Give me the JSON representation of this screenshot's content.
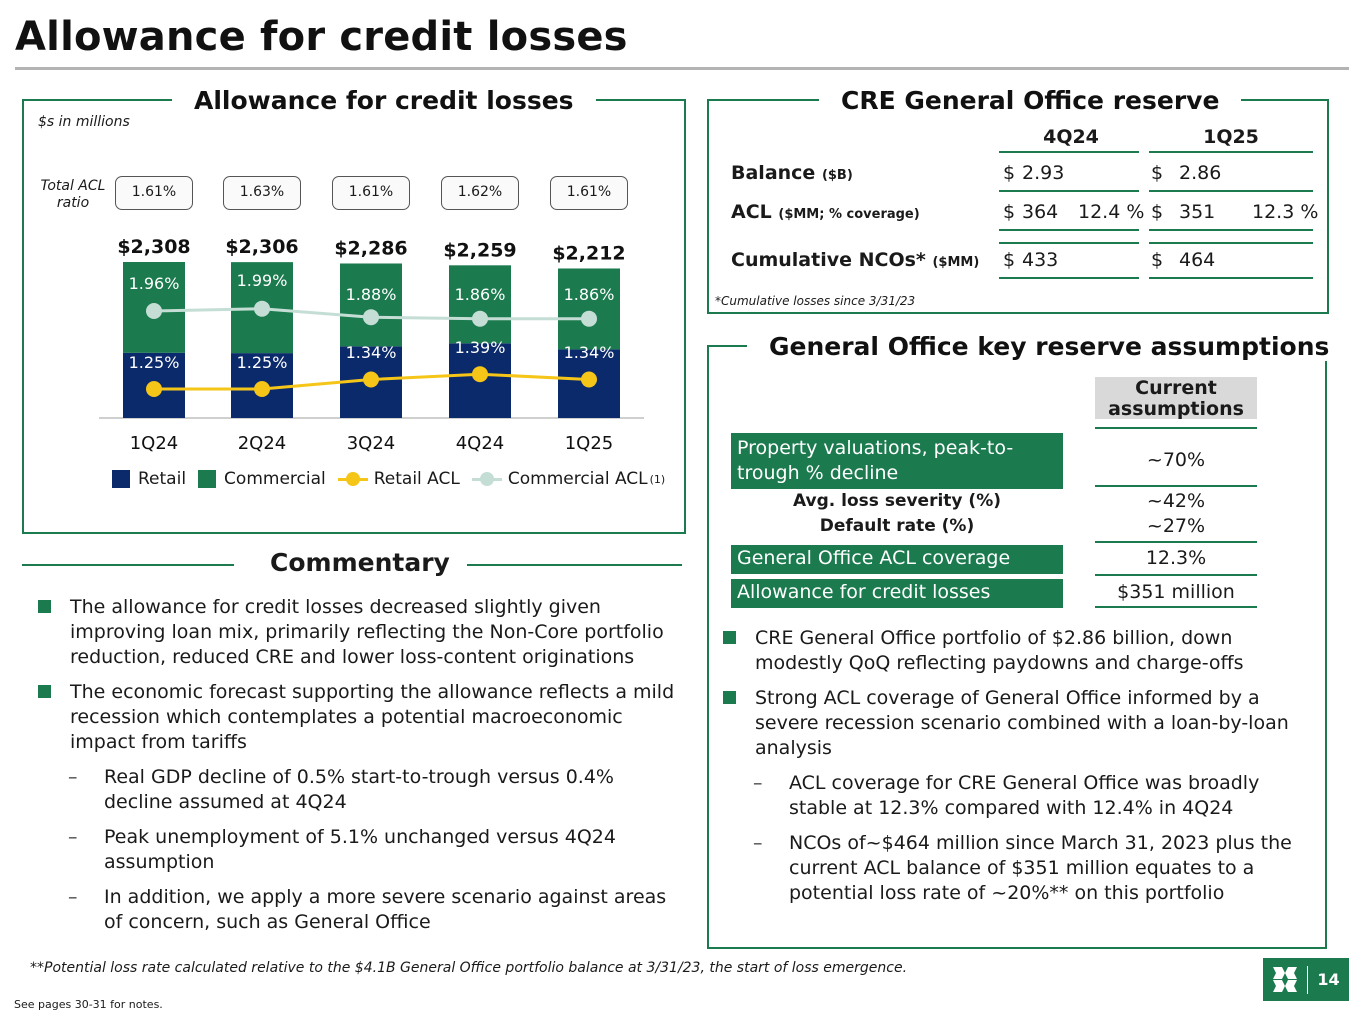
{
  "title": "Allowance for credit losses",
  "acl_panel": {
    "title": "Allowance for credit losses",
    "units_note": "$s in millions",
    "ratio_label": "Total ACL ratio",
    "legend": {
      "retail": "Retail",
      "commercial": "Commercial",
      "retail_acl": "Retail ACL",
      "commercial_acl": "Commercial ACL",
      "note": "(1)"
    }
  },
  "chart_data": {
    "type": "bar",
    "stacked": true,
    "categories": [
      "1Q24",
      "2Q24",
      "3Q24",
      "4Q24",
      "1Q25"
    ],
    "totals": [
      "$2,308",
      "$2,306",
      "$2,286",
      "$2,259",
      "$2,212"
    ],
    "total_acl_ratio": [
      "1.61%",
      "1.63%",
      "1.61%",
      "1.62%",
      "1.61%"
    ],
    "series": [
      {
        "name": "Retail",
        "color": "#0b2a6b",
        "values": [
          965,
          960,
          1060,
          1105,
          1015
        ]
      },
      {
        "name": "Commercial",
        "color": "#1b7a4e",
        "values": [
          1343,
          1346,
          1226,
          1154,
          1197
        ]
      }
    ],
    "lines": [
      {
        "name": "Retail ACL",
        "color": "#f5c518",
        "values": [
          1.25,
          1.25,
          1.34,
          1.39,
          1.34
        ],
        "labels": [
          "1.25%",
          "1.25%",
          "1.34%",
          "1.39%",
          "1.34%"
        ]
      },
      {
        "name": "Commercial ACL",
        "color": "#c5ded5",
        "values": [
          1.96,
          1.99,
          1.88,
          1.86,
          1.86
        ],
        "labels": [
          "1.96%",
          "1.99%",
          "1.88%",
          "1.86%",
          "1.86%"
        ]
      }
    ],
    "ylim": [
      0,
      2500
    ]
  },
  "commentary": {
    "title": "Commentary",
    "items": [
      {
        "type": "bullet",
        "text": "The allowance for credit losses decreased slightly given improving loan mix, primarily reflecting the Non-Core portfolio reduction, reduced CRE and lower loss-content originations"
      },
      {
        "type": "bullet",
        "text": "The economic forecast supporting the allowance reflects a mild recession which contemplates a potential macroeconomic impact from tariffs"
      },
      {
        "type": "sub",
        "text": "Real GDP decline of 0.5% start-to-trough versus 0.4% decline assumed at 4Q24"
      },
      {
        "type": "sub",
        "text": "Peak unemployment of 5.1% unchanged versus 4Q24 assumption"
      },
      {
        "type": "sub",
        "text": "In addition, we apply a more severe scenario against areas of concern, such as General Office"
      }
    ],
    "dash": "–"
  },
  "cre": {
    "title": "CRE General Office reserve",
    "col1": "4Q24",
    "col2": "1Q25",
    "rows": [
      {
        "label": "Balance",
        "unit": "($B)",
        "c1_sym": "$",
        "c1_val": "2.93",
        "c1_pct": "",
        "c2_sym": "$",
        "c2_val": "2.86",
        "c2_pct": ""
      },
      {
        "label": "ACL",
        "unit": "($MM; % coverage)",
        "c1_sym": "$",
        "c1_val": "364",
        "c1_pct": "12.4 %",
        "c2_sym": "$",
        "c2_val": "351",
        "c2_pct": "12.3 %"
      },
      {
        "label": "Cumulative NCOs*",
        "unit": "($MM)",
        "c1_sym": "$",
        "c1_val": "433",
        "c1_pct": "",
        "c2_sym": "$",
        "c2_val": "464",
        "c2_pct": ""
      }
    ],
    "footnote": "*Cumulative losses since 3/31/23"
  },
  "assumptions": {
    "title": "General Office key reserve assumptions",
    "col_head": "Current assumptions",
    "rows": [
      {
        "label": "Property valuations, peak-to-trough % decline",
        "value": "~70%"
      },
      {
        "label": "Avg. loss severity (%)",
        "value": "~42%"
      },
      {
        "label": "Default rate (%)",
        "value": "~27%"
      },
      {
        "label": "General Office ACL coverage",
        "value": "12.3%"
      },
      {
        "label": "Allowance for credit losses",
        "value": "$351 million"
      }
    ],
    "items": [
      {
        "type": "bullet",
        "text": "CRE General Office portfolio of $2.86 billion, down modestly QoQ reflecting paydowns and charge-offs"
      },
      {
        "type": "bullet",
        "text": "Strong ACL coverage of General Office informed by a severe recession scenario combined with a loan-by-loan analysis"
      },
      {
        "type": "sub",
        "text": "ACL coverage for CRE General Office was broadly stable at 12.3% compared with 12.4% in 4Q24"
      },
      {
        "type": "sub",
        "text": "NCOs of~$464 million since March 31, 2023 plus the current ACL balance of $351 million equates to a potential loss rate of ~20%** on this portfolio"
      }
    ]
  },
  "footer": {
    "note": "**Potential loss rate calculated relative to the $4.1B General Office portfolio balance at 3/31/23, the start of loss emergence.",
    "see_pages": "See pages 30-31 for notes.",
    "page_number": "14"
  }
}
